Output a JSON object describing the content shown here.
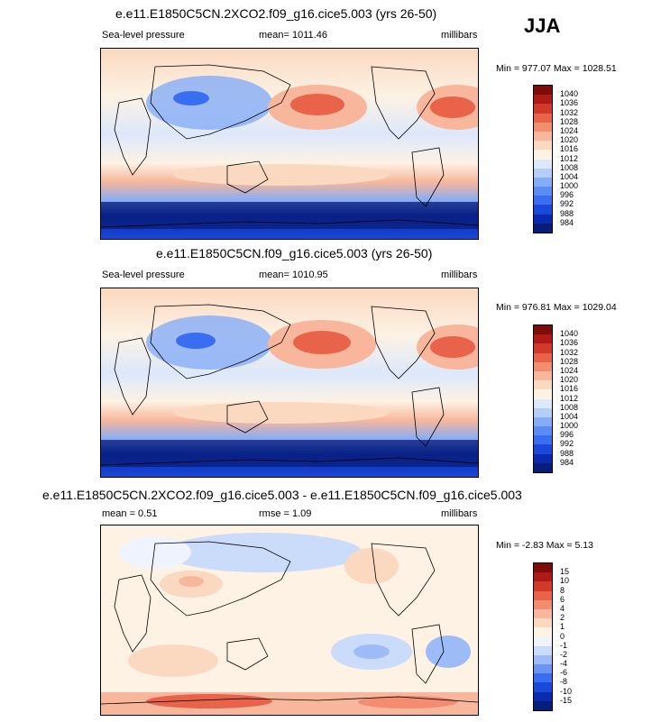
{
  "season": "JJA",
  "colors": {
    "slp_scale": [
      "#081d7a",
      "#0a2bb0",
      "#1a48d8",
      "#3a6ef0",
      "#5a8cf5",
      "#86acf7",
      "#b4cdf9",
      "#dce8fb",
      "#fdf2e4",
      "#fbd8c0",
      "#f8b79c",
      "#f38d6f",
      "#e8634a",
      "#d13a2a",
      "#ad1a17",
      "#7f0a0a"
    ],
    "diff_scale": [
      "#081d7a",
      "#0a2bb0",
      "#1a48d8",
      "#3a6ef0",
      "#6a95f4",
      "#9dbcf7",
      "#cbdbfa",
      "#eef3fd",
      "#fdf2e4",
      "#fbd8c0",
      "#f8b79c",
      "#f38d6f",
      "#e8634a",
      "#d13a2a",
      "#ad1a17",
      "#7f0a0a"
    ]
  },
  "panels": [
    {
      "title": "e.e11.E1850C5CN.2XCO2.f09_g16.cice5.003 (yrs 26-50)",
      "left_label": "Sea-level pressure",
      "center_label": "mean= 1011.46",
      "right_label": "millibars",
      "minmax": "Min = 977.07 Max = 1028.51",
      "levels": [
        "1040",
        "1036",
        "1032",
        "1028",
        "1024",
        "1020",
        "1016",
        "1012",
        "1008",
        "1004",
        "1000",
        "996",
        "992",
        "988",
        "984"
      ]
    },
    {
      "title": "e.e11.E1850C5CN.f09_g16.cice5.003 (yrs 26-50)",
      "left_label": "Sea-level pressure",
      "center_label": "mean= 1010.95",
      "right_label": "millibars",
      "minmax": "Min = 976.81 Max = 1029.04",
      "levels": [
        "1040",
        "1036",
        "1032",
        "1028",
        "1024",
        "1020",
        "1016",
        "1012",
        "1008",
        "1004",
        "1000",
        "996",
        "992",
        "988",
        "984"
      ]
    },
    {
      "title": "e.e11.E1850C5CN.2XCO2.f09_g16.cice5.003 - e.e11.E1850C5CN.f09_g16.cice5.003",
      "left_label": "mean =   0.51",
      "center_label": "rmse =   1.09",
      "right_label": "millibars",
      "minmax": "Min =  -2.83 Max =   5.13",
      "levels": [
        "15",
        "10",
        "8",
        "6",
        "4",
        "2",
        "1",
        "0",
        "-1",
        "-2",
        "-4",
        "-6",
        "-8",
        "-10",
        "-15"
      ]
    }
  ]
}
